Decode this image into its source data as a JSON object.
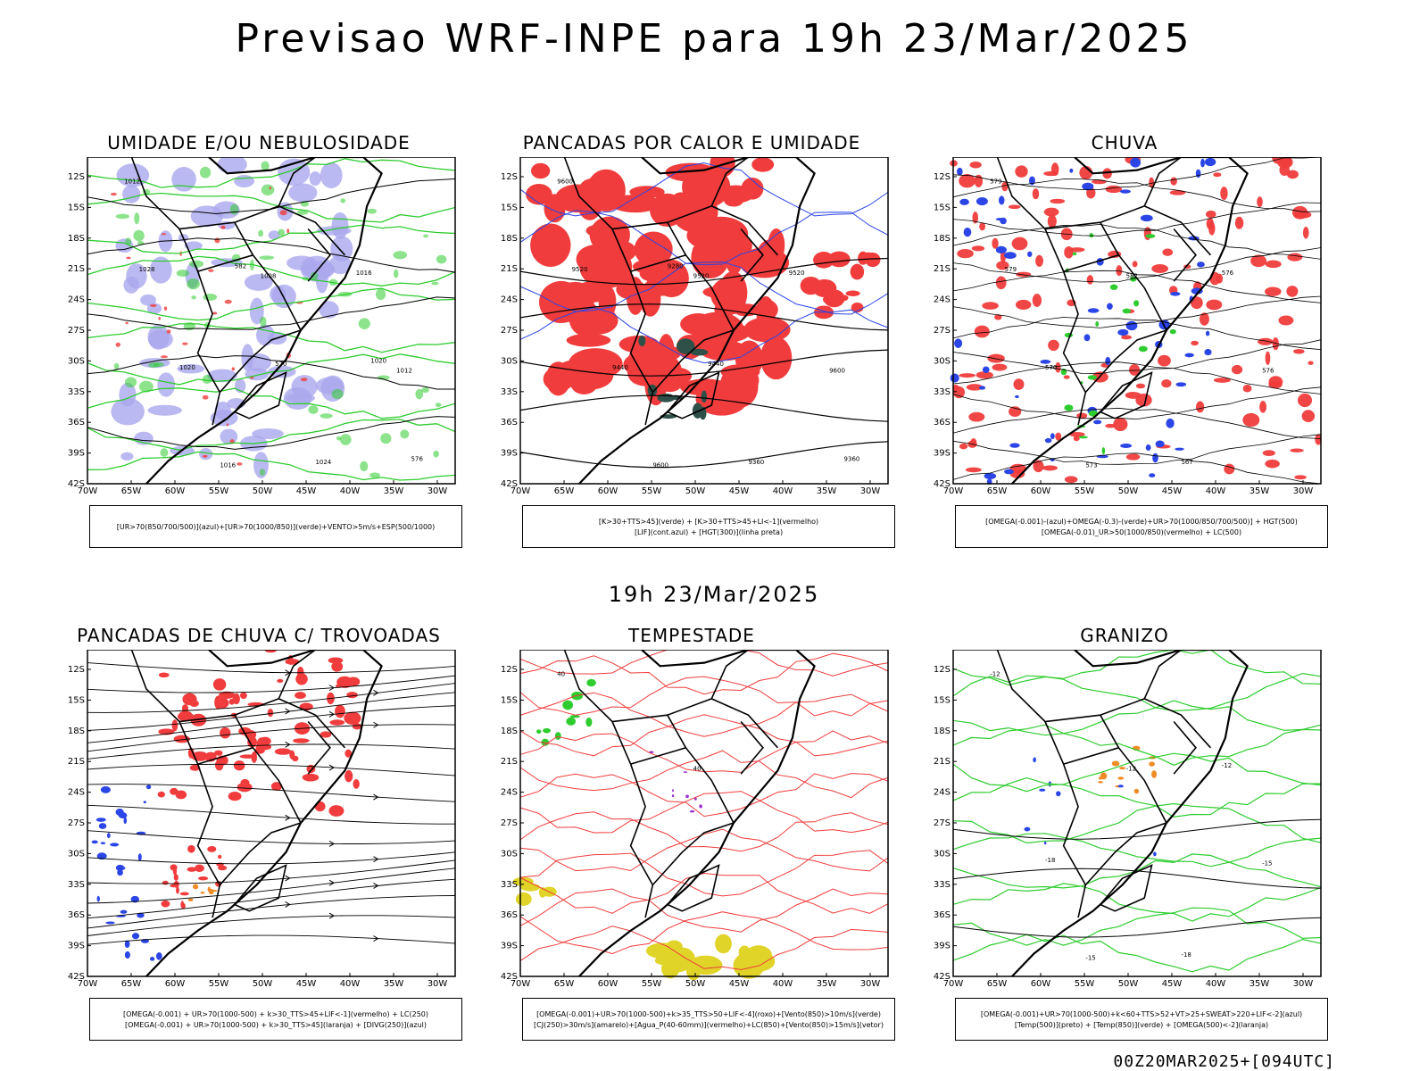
{
  "title": "Previsao WRF-INPE  para 19h 23/Mar/2025",
  "mid_time": "19h 23/Mar/2025",
  "footer": "00Z20MAR2025+[094UTC]",
  "lat_ticks": [
    "12S",
    "15S",
    "18S",
    "21S",
    "24S",
    "27S",
    "30S",
    "33S",
    "36S",
    "39S",
    "42S"
  ],
  "lon_ticks": [
    "70W",
    "65W",
    "60W",
    "55W",
    "50W",
    "45W",
    "40W",
    "35W",
    "30W"
  ],
  "colors": {
    "red": "#f03c3c",
    "green": "#2ecc2e",
    "blue": "#2b45e6",
    "lavender": "#aaa8ee",
    "orange": "#f08c28",
    "yellow": "#e0d428",
    "darkgreen": "#2e5048",
    "purple": "#9b2fd0"
  },
  "panels": [
    {
      "title": "UMIDADE E/OU NEBULOSIDADE",
      "legend": [
        "[UR>70(850/700/500)](azul)+[UR>70(1000/850)](verde)+VENTO>5m/s+ESP(500/1000)"
      ],
      "labels": [
        "1012",
        "1008",
        "1012",
        "1016",
        "1016",
        "1020",
        "1024",
        "1028",
        "570",
        "576",
        "582",
        "1020"
      ]
    },
    {
      "title": "PANCADAS POR CALOR E UMIDADE",
      "legend": [
        "[K>30+TTS>45](verde) + [K>30+TTS>45+LI<-1](vermelho)",
        "[LIF](cont.azul) + [HGT(300)](linha preta)"
      ],
      "labels": [
        "9600",
        "9520",
        "9600",
        "9600",
        "9520",
        "9440",
        "9360",
        "9520",
        "9440",
        "9360",
        "9280"
      ]
    },
    {
      "title": "CHUVA",
      "legend": [
        "[OMEGA(-0.001)-(azul)+OMEGA(-0.3)-(verde)+UR>70(1000/850/700/500)] + HGT(500)",
        "[OMEGA(-0.01)_UR>50(1000/850)(vermelho) + LC(500)"
      ],
      "labels": [
        "579",
        "582",
        "576",
        "573",
        "576",
        "570",
        "567",
        "579"
      ]
    },
    {
      "title": "PANCADAS DE CHUVA C/ TROVOADAS",
      "legend": [
        "[OMEGA(-0.001) + UR>70(1000-500) + k>30_TTS>45+LIF<-1](vermelho) + LC(250)",
        "[OMEGA(-0.001) + UR>70(1000-500) + k>30_TTS>45](laranja) + [DIVG(250)](azul)"
      ],
      "labels": []
    },
    {
      "title": "TEMPESTADE",
      "legend": [
        "[OMEGA(-0.001)+UR>70(1000-500)+k>35_TTS>50+LIF<-4](roxo)+[Vento(850)>10m/s](verde)",
        "[CJ(250)>30m/s](amarelo)+[Agua_P(40-60mm)](vermelho)+LC(850)+[Vento(850)>15m/s](vetor)"
      ],
      "labels": [
        "40",
        "40"
      ]
    },
    {
      "title": "GRANIZO",
      "legend": [
        "[OMEGA(-0.001)+UR>70(1000-500)+k<60+TTS>52+VT>25+SWEAT>220+LIF<-2](azul)",
        "[Temp(500)](preto) + [Temp(850)](verde) + [OMEGA(500)<-2](laranja)"
      ],
      "labels": [
        "-12",
        "-12",
        "-15",
        "-15",
        "-12",
        "-18",
        "-18"
      ]
    }
  ]
}
